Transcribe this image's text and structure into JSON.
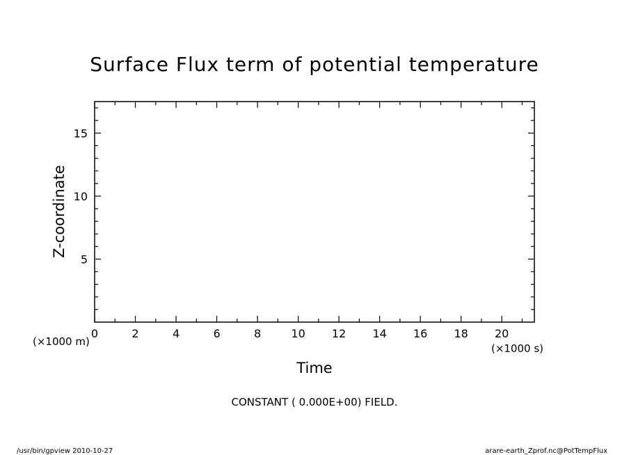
{
  "chart_data": {
    "type": "line",
    "title": "Surface Flux term of potential temperature",
    "xlabel": "Time",
    "ylabel": "Z-coordinate",
    "x_unit": "(×1000 s)",
    "y_unit": "(×1000 m)",
    "xlim": [
      0,
      21.6
    ],
    "ylim": [
      0,
      17.5
    ],
    "x_major_ticks": [
      0,
      2,
      4,
      6,
      8,
      10,
      12,
      14,
      16,
      18,
      20
    ],
    "y_major_ticks": [
      5,
      10,
      15
    ],
    "x_tick_labels": [
      "0",
      "2",
      "4",
      "6",
      "8",
      "10",
      "12",
      "14",
      "16",
      "18",
      "20"
    ],
    "y_tick_labels": [
      "5",
      "10",
      "15"
    ],
    "x_minor_step": 1,
    "y_minor_step": 1,
    "series": [],
    "grid": false,
    "annotation": "CONSTANT ( 0.000E+00) FIELD."
  },
  "footer": {
    "left": "/usr/bin/gpview   2010-10-27",
    "right": "arare-earth_Zprof.nc@PotTempFlux"
  },
  "colors": {
    "axis": "#000000",
    "background": "#ffffff"
  }
}
